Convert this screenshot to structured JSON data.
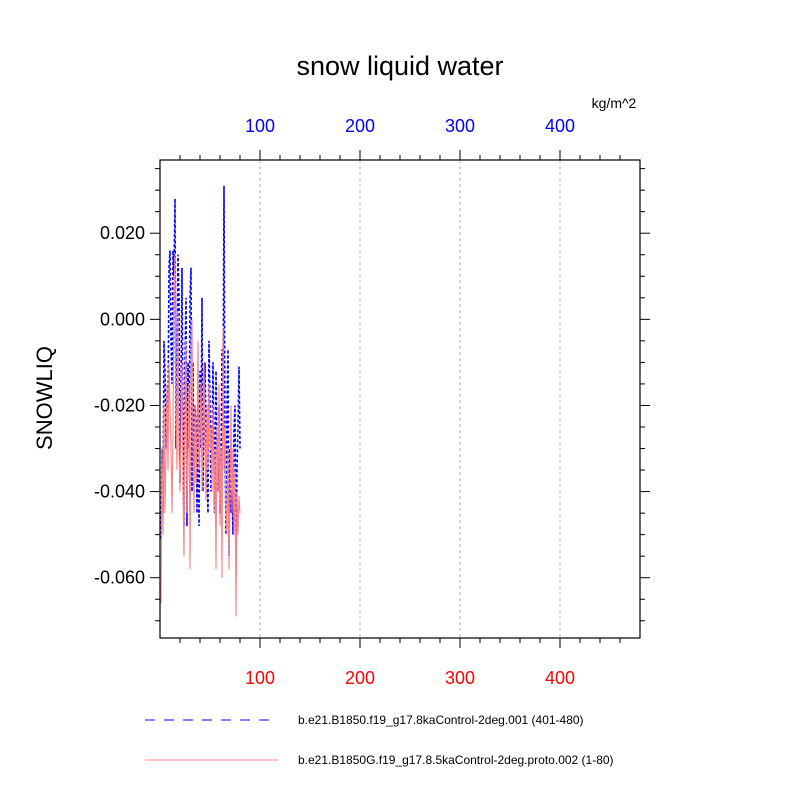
{
  "chart_data": {
    "type": "line",
    "title": "snow liquid water",
    "units": "kg/m^2",
    "ylabel": "SNOWLIQ",
    "xlabel": "",
    "xlim": [
      0,
      480
    ],
    "ylim": [
      -0.074,
      0.037
    ],
    "yticks": [
      0.02,
      0.0,
      -0.02,
      -0.04,
      -0.06
    ],
    "ytick_labels": [
      "0.020",
      "0.000",
      "-0.020",
      "-0.040",
      "-0.060"
    ],
    "xticks_top": [
      100,
      200,
      300,
      400
    ],
    "xtick_labels_top": [
      "100",
      "200",
      "300",
      "400"
    ],
    "xticks_bottom": [
      100,
      200,
      300,
      400
    ],
    "xtick_labels_bottom": [
      "100",
      "200",
      "300",
      "400"
    ],
    "top_axis_color": "#0000ff",
    "bottom_axis_color": "#ff0000",
    "grid": "vertical dotted at 100, 200, 300, 400",
    "legend_position": "bottom",
    "series": [
      {
        "name": "b.e21.B1850.f19_g17.8kaControl-2deg.001 (401-480)",
        "color": "#0000ff",
        "style": "dashed",
        "x": [
          1,
          2,
          3,
          4,
          5,
          6,
          7,
          8,
          9,
          10,
          11,
          12,
          13,
          14,
          15,
          16,
          17,
          18,
          19,
          20,
          21,
          22,
          23,
          24,
          25,
          26,
          27,
          28,
          29,
          30,
          31,
          32,
          33,
          34,
          35,
          36,
          37,
          38,
          39,
          40,
          41,
          42,
          43,
          44,
          45,
          46,
          47,
          48,
          49,
          50,
          51,
          52,
          53,
          54,
          55,
          56,
          57,
          58,
          59,
          60,
          61,
          62,
          63,
          64,
          65,
          66,
          67,
          68,
          69,
          70,
          71,
          72,
          73,
          74,
          75,
          76,
          77,
          78,
          79,
          80
        ],
        "y": [
          -0.051,
          -0.03,
          -0.045,
          -0.005,
          -0.012,
          -0.03,
          -0.018,
          -0.022,
          0.012,
          0.016,
          -0.005,
          -0.015,
          0.016,
          0.01,
          0.028,
          -0.03,
          -0.01,
          0.015,
          0.005,
          -0.038,
          -0.02,
          0.012,
          -0.025,
          -0.048,
          -0.01,
          0.005,
          -0.048,
          -0.01,
          -0.03,
          0.005,
          0.012,
          -0.04,
          -0.01,
          -0.035,
          -0.02,
          -0.025,
          -0.045,
          -0.02,
          -0.048,
          -0.012,
          -0.03,
          0.005,
          -0.04,
          -0.02,
          -0.01,
          -0.025,
          -0.035,
          -0.045,
          -0.005,
          -0.02,
          -0.04,
          -0.03,
          -0.01,
          -0.03,
          -0.045,
          -0.012,
          -0.03,
          -0.04,
          -0.02,
          -0.045,
          -0.035,
          -0.007,
          -0.025,
          0.031,
          -0.03,
          -0.05,
          -0.02,
          -0.007,
          -0.055,
          -0.03,
          -0.045,
          -0.04,
          -0.05,
          -0.025,
          -0.02,
          -0.056,
          -0.035,
          -0.025,
          -0.011,
          -0.03
        ]
      },
      {
        "name": "b.e21.B1850G.f19_g17.8.5kaControl-2deg.proto.002 (1-80)",
        "color": "#ff8080",
        "style": "solid",
        "x": [
          1,
          2,
          3,
          4,
          5,
          6,
          7,
          8,
          9,
          10,
          11,
          12,
          13,
          14,
          15,
          16,
          17,
          18,
          19,
          20,
          21,
          22,
          23,
          24,
          25,
          26,
          27,
          28,
          29,
          30,
          31,
          32,
          33,
          34,
          35,
          36,
          37,
          38,
          39,
          40,
          41,
          42,
          43,
          44,
          45,
          46,
          47,
          48,
          49,
          50,
          51,
          52,
          53,
          54,
          55,
          56,
          57,
          58,
          59,
          60,
          61,
          62,
          63,
          64,
          65,
          66,
          67,
          68,
          69,
          70,
          71,
          72,
          73,
          74,
          75,
          76,
          77,
          78,
          79,
          80
        ],
        "y": [
          -0.066,
          -0.03,
          -0.05,
          -0.02,
          -0.045,
          -0.03,
          -0.015,
          -0.035,
          -0.01,
          -0.02,
          -0.03,
          -0.045,
          -0.025,
          0.005,
          0.015,
          -0.02,
          -0.035,
          0.002,
          -0.03,
          -0.04,
          -0.025,
          -0.01,
          -0.04,
          -0.055,
          -0.02,
          -0.005,
          -0.045,
          -0.03,
          -0.015,
          -0.058,
          -0.02,
          0.0,
          -0.03,
          -0.045,
          -0.02,
          -0.038,
          -0.025,
          -0.005,
          -0.035,
          -0.028,
          -0.015,
          -0.04,
          -0.025,
          -0.01,
          -0.03,
          -0.042,
          -0.02,
          -0.035,
          -0.015,
          -0.03,
          -0.025,
          -0.04,
          -0.02,
          -0.045,
          -0.03,
          -0.058,
          -0.025,
          -0.04,
          -0.015,
          -0.048,
          -0.03,
          -0.06,
          -0.002,
          -0.035,
          -0.025,
          -0.045,
          -0.05,
          -0.03,
          -0.058,
          -0.04,
          -0.02,
          -0.045,
          -0.03,
          -0.05,
          -0.035,
          -0.069,
          -0.04,
          -0.05,
          -0.041,
          -0.045
        ]
      }
    ]
  }
}
